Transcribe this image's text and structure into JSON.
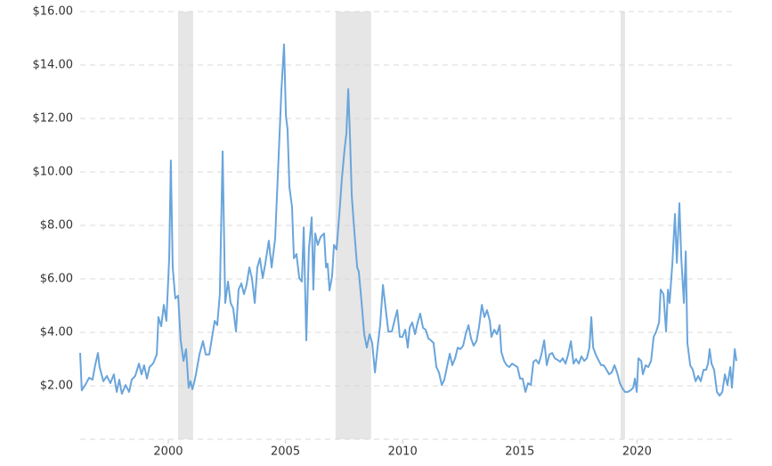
{
  "chart_data": {
    "type": "line",
    "color": "#6aa5db",
    "band_color": "#e6e6e6",
    "grid": true,
    "xlim": [
      1996.24,
      2024.24
    ],
    "ylim": [
      0,
      16
    ],
    "xticks": [
      2000,
      2005,
      2010,
      2015,
      2020
    ],
    "yticks": [
      {
        "value": 2,
        "label": "$2.00"
      },
      {
        "value": 4,
        "label": "$4.00"
      },
      {
        "value": 6,
        "label": "$6.00"
      },
      {
        "value": 8,
        "label": "$8.00"
      },
      {
        "value": 10,
        "label": "$10.00"
      },
      {
        "value": 12,
        "label": "$12.00"
      },
      {
        "value": 14,
        "label": "$14.00"
      },
      {
        "value": 16,
        "label": "$16.00"
      }
    ],
    "shaded_ranges": [
      [
        2000.42,
        2001.06
      ],
      [
        2007.14,
        2008.66
      ],
      [
        2019.3,
        2019.49
      ]
    ],
    "x": [
      1996.24,
      1996.31,
      1996.46,
      1996.62,
      1996.77,
      1996.88,
      1997.0,
      1997.07,
      1997.23,
      1997.38,
      1997.53,
      1997.68,
      1997.8,
      1997.91,
      1998.02,
      1998.18,
      1998.33,
      1998.44,
      1998.59,
      1998.75,
      1998.86,
      1998.97,
      1999.09,
      1999.2,
      1999.35,
      1999.51,
      1999.58,
      1999.7,
      1999.81,
      1999.92,
      2000.04,
      2000.11,
      2000.19,
      2000.3,
      2000.42,
      2000.53,
      2000.65,
      2000.76,
      2000.87,
      2000.95,
      2001.03,
      2001.1,
      2001.18,
      2001.33,
      2001.48,
      2001.6,
      2001.75,
      2001.86,
      2001.98,
      2002.09,
      2002.2,
      2002.32,
      2002.43,
      2002.55,
      2002.66,
      2002.77,
      2002.89,
      2003.0,
      2003.12,
      2003.23,
      2003.34,
      2003.46,
      2003.57,
      2003.69,
      2003.8,
      2003.91,
      2004.03,
      2004.14,
      2004.29,
      2004.41,
      2004.56,
      2004.67,
      2004.83,
      2004.94,
      2005.02,
      2005.09,
      2005.17,
      2005.28,
      2005.36,
      2005.47,
      2005.59,
      2005.7,
      2005.78,
      2005.89,
      2006.0,
      2006.12,
      2006.19,
      2006.27,
      2006.38,
      2006.5,
      2006.65,
      2006.73,
      2006.8,
      2006.88,
      2006.99,
      2007.07,
      2007.18,
      2007.3,
      2007.41,
      2007.52,
      2007.6,
      2007.68,
      2007.75,
      2007.83,
      2007.94,
      2008.06,
      2008.13,
      2008.25,
      2008.36,
      2008.47,
      2008.59,
      2008.7,
      2008.82,
      2008.93,
      2009.04,
      2009.16,
      2009.27,
      2009.39,
      2009.54,
      2009.65,
      2009.77,
      2009.88,
      2009.99,
      2010.11,
      2010.22,
      2010.3,
      2010.41,
      2010.53,
      2010.64,
      2010.75,
      2010.87,
      2010.98,
      2011.1,
      2011.21,
      2011.32,
      2011.44,
      2011.55,
      2011.67,
      2011.78,
      2011.89,
      2012.01,
      2012.12,
      2012.24,
      2012.35,
      2012.46,
      2012.58,
      2012.69,
      2012.81,
      2012.92,
      2013.03,
      2013.15,
      2013.26,
      2013.38,
      2013.49,
      2013.6,
      2013.72,
      2013.79,
      2013.91,
      2014.02,
      2014.14,
      2014.21,
      2014.33,
      2014.44,
      2014.55,
      2014.67,
      2014.78,
      2014.9,
      2015.01,
      2015.12,
      2015.24,
      2015.35,
      2015.47,
      2015.58,
      2015.69,
      2015.81,
      2015.92,
      2016.04,
      2016.15,
      2016.26,
      2016.38,
      2016.49,
      2016.61,
      2016.72,
      2016.83,
      2016.95,
      2017.06,
      2017.18,
      2017.29,
      2017.4,
      2017.52,
      2017.63,
      2017.75,
      2017.86,
      2017.97,
      2018.05,
      2018.13,
      2018.24,
      2018.35,
      2018.47,
      2018.58,
      2018.7,
      2018.81,
      2018.92,
      2019.04,
      2019.15,
      2019.27,
      2019.38,
      2019.49,
      2019.61,
      2019.72,
      2019.84,
      2019.91,
      2019.99,
      2020.06,
      2020.18,
      2020.25,
      2020.37,
      2020.48,
      2020.6,
      2020.71,
      2020.82,
      2020.94,
      2021.01,
      2021.13,
      2021.24,
      2021.32,
      2021.39,
      2021.51,
      2021.62,
      2021.7,
      2021.81,
      2021.89,
      2022.0,
      2022.08,
      2022.15,
      2022.27,
      2022.38,
      2022.5,
      2022.61,
      2022.72,
      2022.84,
      2022.95,
      2023.03,
      2023.1,
      2023.18,
      2023.29,
      2023.41,
      2023.52,
      2023.64,
      2023.75,
      2023.86,
      2023.98,
      2024.05,
      2024.17,
      2024.24
    ],
    "values": [
      3.23,
      1.83,
      2.03,
      2.3,
      2.23,
      2.77,
      3.23,
      2.7,
      2.17,
      2.37,
      2.1,
      2.43,
      1.77,
      2.23,
      1.7,
      2.03,
      1.77,
      2.23,
      2.37,
      2.83,
      2.43,
      2.77,
      2.27,
      2.7,
      2.83,
      3.17,
      4.57,
      4.23,
      5.03,
      4.43,
      6.77,
      10.43,
      6.43,
      5.27,
      5.37,
      3.7,
      2.93,
      3.37,
      1.93,
      2.17,
      1.87,
      2.1,
      2.43,
      3.17,
      3.67,
      3.17,
      3.17,
      3.77,
      4.43,
      4.27,
      5.43,
      10.77,
      5.1,
      5.9,
      5.1,
      4.9,
      4.03,
      5.6,
      5.83,
      5.43,
      5.77,
      6.43,
      6.03,
      5.1,
      6.43,
      6.77,
      6.03,
      6.57,
      7.43,
      6.43,
      7.5,
      9.77,
      13.1,
      14.77,
      12.1,
      11.6,
      9.43,
      8.7,
      6.77,
      6.93,
      6.03,
      5.9,
      7.93,
      3.7,
      7.1,
      8.3,
      5.6,
      7.7,
      7.27,
      7.57,
      7.7,
      6.43,
      6.57,
      5.57,
      6.1,
      7.27,
      7.1,
      8.43,
      9.77,
      10.83,
      11.43,
      13.1,
      11.43,
      9.1,
      7.77,
      6.43,
      6.27,
      5.1,
      3.93,
      3.43,
      3.93,
      3.6,
      2.5,
      3.43,
      4.27,
      5.77,
      4.93,
      4.03,
      4.03,
      4.43,
      4.83,
      3.83,
      3.83,
      4.1,
      3.43,
      4.17,
      4.37,
      3.93,
      4.37,
      4.7,
      4.17,
      4.1,
      3.77,
      3.7,
      3.6,
      2.7,
      2.5,
      2.03,
      2.23,
      2.7,
      3.2,
      2.77,
      3.03,
      3.43,
      3.37,
      3.5,
      3.93,
      4.27,
      3.77,
      3.5,
      3.67,
      4.2,
      5.03,
      4.57,
      4.83,
      4.43,
      3.83,
      4.1,
      3.93,
      4.27,
      3.27,
      2.93,
      2.77,
      2.7,
      2.83,
      2.77,
      2.7,
      2.27,
      2.27,
      1.77,
      2.1,
      2.03,
      2.9,
      2.97,
      2.83,
      3.17,
      3.7,
      2.77,
      3.17,
      3.23,
      3.03,
      2.97,
      2.9,
      3.03,
      2.83,
      3.17,
      3.67,
      2.83,
      3.0,
      2.83,
      3.1,
      2.93,
      3.03,
      3.43,
      4.57,
      3.43,
      3.17,
      2.97,
      2.77,
      2.77,
      2.6,
      2.43,
      2.5,
      2.77,
      2.5,
      2.1,
      1.9,
      1.77,
      1.77,
      1.83,
      1.93,
      2.27,
      1.77,
      3.03,
      2.93,
      2.43,
      2.77,
      2.7,
      2.93,
      3.83,
      4.03,
      4.37,
      5.6,
      5.43,
      4.03,
      5.6,
      5.1,
      6.6,
      8.43,
      6.6,
      8.83,
      6.77,
      5.1,
      7.03,
      3.6,
      2.77,
      2.6,
      2.17,
      2.37,
      2.17,
      2.6,
      2.6,
      2.83,
      3.37,
      2.83,
      2.6,
      1.77,
      1.63,
      1.77,
      2.43,
      2.03,
      2.7,
      1.93,
      3.37,
      2.93
    ]
  }
}
